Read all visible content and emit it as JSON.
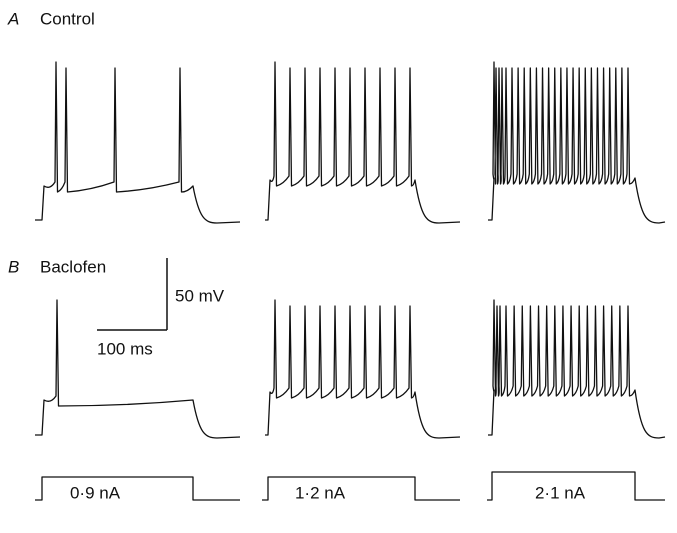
{
  "panels": [
    {
      "label": "A",
      "title": "Control"
    },
    {
      "label": "B",
      "title": "Baclofen"
    }
  ],
  "scale_bar": {
    "voltage": "50 mV",
    "time": "100 ms"
  },
  "current_steps": [
    "0·9 nA",
    "1·2 nA",
    "2·1 nA"
  ]
}
